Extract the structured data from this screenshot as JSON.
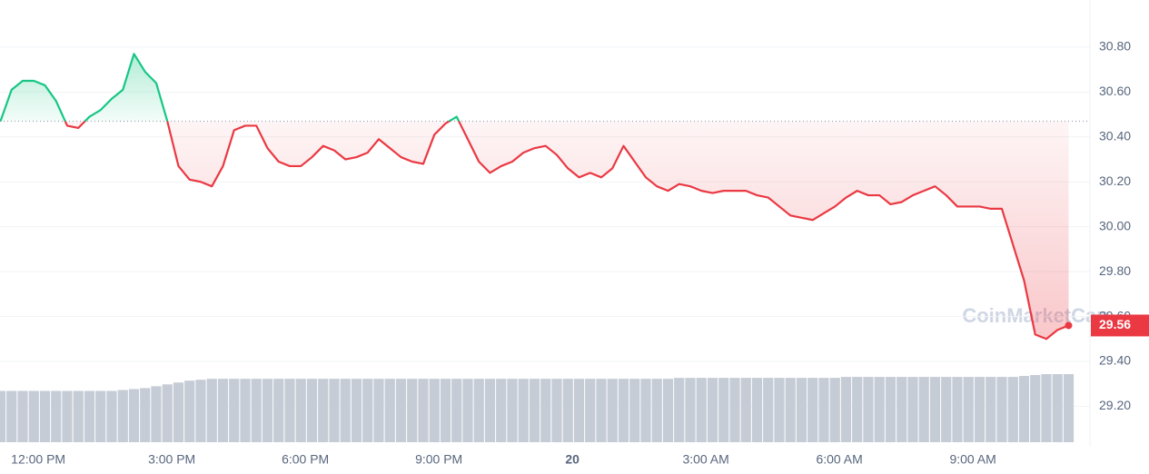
{
  "chart_data": {
    "type": "line",
    "watermark": "CoinMarketCap",
    "x": [
      11.15,
      11.4,
      11.65,
      11.9,
      12.15,
      12.4,
      12.65,
      12.9,
      13.15,
      13.4,
      13.65,
      13.9,
      14.15,
      14.4,
      14.65,
      14.9,
      15.15,
      15.4,
      15.65,
      15.9,
      16.15,
      16.4,
      16.65,
      16.9,
      17.15,
      17.4,
      17.65,
      17.9,
      18.15,
      18.4,
      18.65,
      18.9,
      19.15,
      19.4,
      19.65,
      19.9,
      20.15,
      20.4,
      20.65,
      20.9,
      21.15,
      21.4,
      21.65,
      21.9,
      22.15,
      22.4,
      22.65,
      22.9,
      23.15,
      23.4,
      23.65,
      23.9,
      24.15,
      24.4,
      24.65,
      24.9,
      25.15,
      25.4,
      25.65,
      25.9,
      26.15,
      26.4,
      26.65,
      26.9,
      27.15,
      27.4,
      27.65,
      27.9,
      28.15,
      28.4,
      28.65,
      28.9,
      29.15,
      29.4,
      29.65,
      29.9,
      30.15,
      30.4,
      30.65,
      30.9,
      31.15,
      31.4,
      31.65,
      31.9,
      32.15,
      32.4,
      32.65,
      32.9,
      33.15,
      33.4,
      33.65,
      33.9,
      34.15,
      34.4,
      34.65,
      34.9,
      35.15
    ],
    "values": [
      30.47,
      30.61,
      30.65,
      30.65,
      30.63,
      30.56,
      30.45,
      30.44,
      30.49,
      30.52,
      30.57,
      30.61,
      30.77,
      30.69,
      30.64,
      30.47,
      30.27,
      30.21,
      30.2,
      30.18,
      30.27,
      30.43,
      30.45,
      30.45,
      30.35,
      30.29,
      30.27,
      30.27,
      30.31,
      30.36,
      30.34,
      30.3,
      30.31,
      30.33,
      30.39,
      30.35,
      30.31,
      30.29,
      30.28,
      30.41,
      30.46,
      30.49,
      30.39,
      30.29,
      30.24,
      30.27,
      30.29,
      30.33,
      30.35,
      30.36,
      30.32,
      30.26,
      30.22,
      30.24,
      30.22,
      30.26,
      30.36,
      30.29,
      30.22,
      30.18,
      30.16,
      30.19,
      30.18,
      30.16,
      30.15,
      30.16,
      30.16,
      30.16,
      30.14,
      30.13,
      30.09,
      30.05,
      30.04,
      30.03,
      30.06,
      30.09,
      30.13,
      30.16,
      30.14,
      30.14,
      30.1,
      30.11,
      30.14,
      30.16,
      30.18,
      30.14,
      30.09,
      30.09,
      30.09,
      30.08,
      30.08,
      29.92,
      29.76,
      29.52,
      29.5,
      29.54,
      29.56
    ],
    "volume": [
      55,
      55,
      55,
      55,
      55,
      55,
      55,
      55,
      55,
      55,
      55,
      56,
      57,
      58,
      60,
      62,
      64,
      66,
      67,
      68,
      68,
      68,
      68,
      68,
      68,
      68,
      68,
      68,
      68,
      68,
      68,
      68,
      68,
      68,
      68,
      68,
      68,
      68,
      68,
      68,
      68,
      68,
      68,
      68,
      68,
      68,
      68,
      68,
      68,
      68,
      68,
      68,
      68,
      68,
      68,
      68,
      68,
      68,
      68,
      68,
      68,
      69,
      69,
      69,
      69,
      69,
      69,
      69,
      69,
      69,
      69,
      69,
      69,
      69,
      69,
      69,
      70,
      70,
      70,
      70,
      70,
      70,
      70,
      70,
      70,
      70,
      70,
      70,
      70,
      70,
      70,
      70,
      71,
      72,
      73,
      73,
      73
    ],
    "volume_color": "#c6ccd6",
    "baseline": 30.47,
    "up_color": "#16c784",
    "down_color": "#ea3943",
    "xlim": [
      11.14,
      35.63
    ],
    "xticks": [
      {
        "value": 12,
        "label": "12:00 PM"
      },
      {
        "value": 15,
        "label": "3:00 PM"
      },
      {
        "value": 18,
        "label": "6:00 PM"
      },
      {
        "value": 21,
        "label": "9:00 PM"
      },
      {
        "value": 24,
        "label": "20"
      },
      {
        "value": 27,
        "label": "3:00 AM"
      },
      {
        "value": 30,
        "label": "6:00 AM"
      },
      {
        "value": 33,
        "label": "9:00 AM"
      }
    ],
    "ylim": [
      29.04,
      31.01
    ],
    "yticks": [
      {
        "value": 29.2,
        "label": "29.20"
      },
      {
        "value": 29.4,
        "label": "29.40"
      },
      {
        "value": 29.6,
        "label": "29.60"
      },
      {
        "value": 29.8,
        "label": "29.80"
      },
      {
        "value": 30.0,
        "label": "30.00"
      },
      {
        "value": 30.2,
        "label": "30.20"
      },
      {
        "value": 30.4,
        "label": "30.40"
      },
      {
        "value": 30.6,
        "label": "30.60"
      },
      {
        "value": 30.8,
        "label": "30.80"
      }
    ],
    "grid": true
  }
}
